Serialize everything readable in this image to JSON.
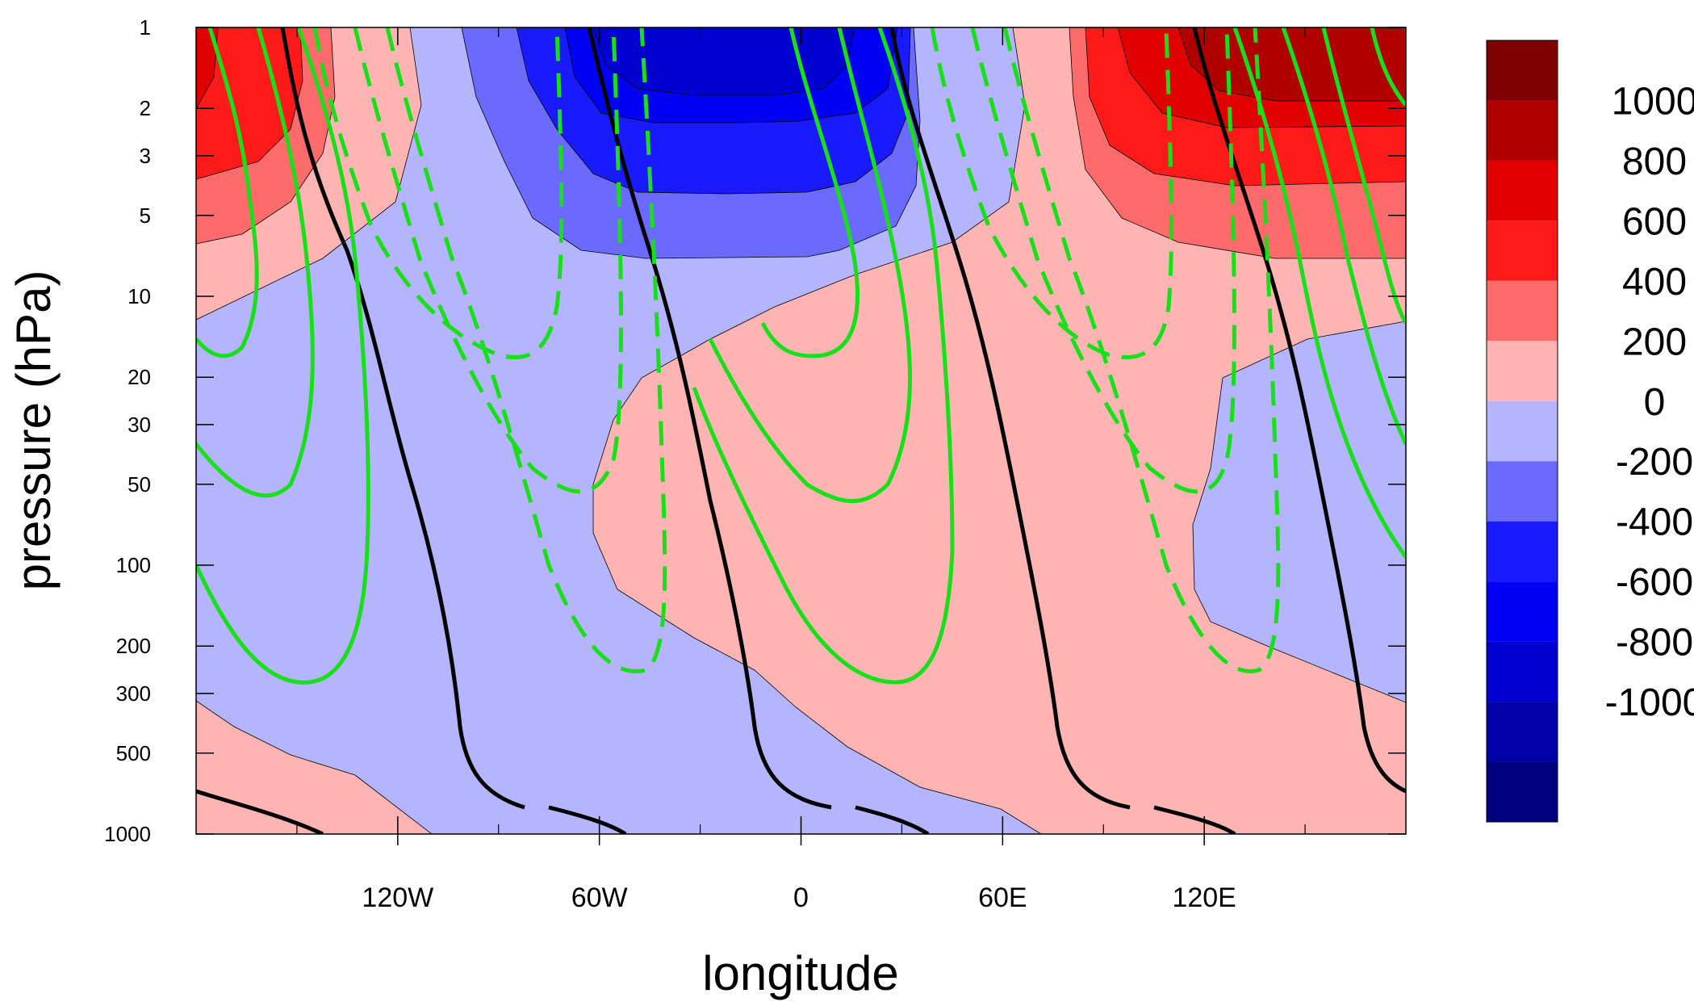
{
  "chart_data": {
    "type": "heatmap",
    "title": "",
    "xlabel": "longitude",
    "ylabel": "pressure (hPa)",
    "x_axis": {
      "range": [
        -180,
        180
      ],
      "major_ticks": [
        {
          "value": -120,
          "label": "120W"
        },
        {
          "value": -60,
          "label": "60W"
        },
        {
          "value": 0,
          "label": "0"
        },
        {
          "value": 60,
          "label": "60E"
        },
        {
          "value": 120,
          "label": "120E"
        }
      ],
      "minor_ticks": [
        -150,
        -90,
        -30,
        30,
        90,
        150
      ]
    },
    "y_axis": {
      "scale": "log",
      "reversed": true,
      "range": [
        1000,
        1
      ],
      "ticks": [
        {
          "value": 1,
          "label": "1"
        },
        {
          "value": 2,
          "label": "2"
        },
        {
          "value": 3,
          "label": "3"
        },
        {
          "value": 5,
          "label": "5"
        },
        {
          "value": 10,
          "label": "10"
        },
        {
          "value": 20,
          "label": "20"
        },
        {
          "value": 30,
          "label": "30"
        },
        {
          "value": 50,
          "label": "50"
        },
        {
          "value": 100,
          "label": "100"
        },
        {
          "value": 200,
          "label": "200"
        },
        {
          "value": 300,
          "label": "300"
        },
        {
          "value": 500,
          "label": "500"
        },
        {
          "value": 1000,
          "label": "1000"
        }
      ]
    },
    "colorbar": {
      "orientation": "vertical",
      "placement": "right",
      "levels": [
        -1000,
        -800,
        -600,
        -400,
        -200,
        0,
        200,
        400,
        600,
        800,
        1000
      ],
      "labels": [
        "-1000",
        "-800",
        "-600",
        "-400",
        "-200",
        "0",
        "200",
        "400",
        "600",
        "800",
        "1000"
      ],
      "colors": [
        "#000080",
        "#0000a8",
        "#0000d0",
        "#0000f4",
        "#1a1aff",
        "#6a6aff",
        "#b4b4ff",
        "#ffb4b4",
        "#ff6a6a",
        "#ff1a1a",
        "#e00000",
        "#b00000",
        "#800000"
      ]
    },
    "overlay_contours": [
      {
        "series": "black",
        "color": "#000000",
        "style": "solid"
      },
      {
        "series": "green positive",
        "color": "#18e018",
        "style": "solid"
      },
      {
        "series": "green negative",
        "color": "#18e018",
        "style": "dashed"
      }
    ],
    "grid": false
  }
}
